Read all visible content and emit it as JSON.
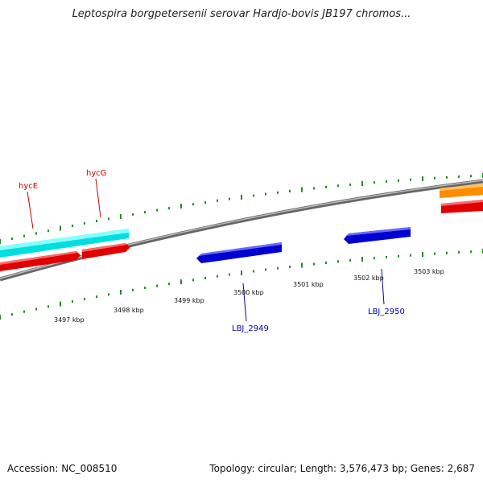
{
  "title": "Leptospira borgpetersenii serovar Hardjo-bovis JB197 chromos...",
  "footer": {
    "accession": "Accession: NC_008510",
    "summary": "Topology: circular; Length: 3,576,473 bp; Genes: 2,687"
  },
  "scale_labels": [
    "3497 kbp",
    "3498 kbp",
    "3499 kbp",
    "3500 kbp",
    "3501 kbp",
    "3502 kbp",
    "3503 kbp"
  ],
  "gene_labels": {
    "hycE": "hycE",
    "hycG": "hycG",
    "lbj2949": "LBJ_2949",
    "lbj2950": "LBJ_2950"
  },
  "colors": {
    "red": "#ff0000",
    "blue": "#0000ee",
    "cyan": "#00ffff",
    "orange": "#ff8c00",
    "backbone": "#808080",
    "tick": "#228b22"
  }
}
